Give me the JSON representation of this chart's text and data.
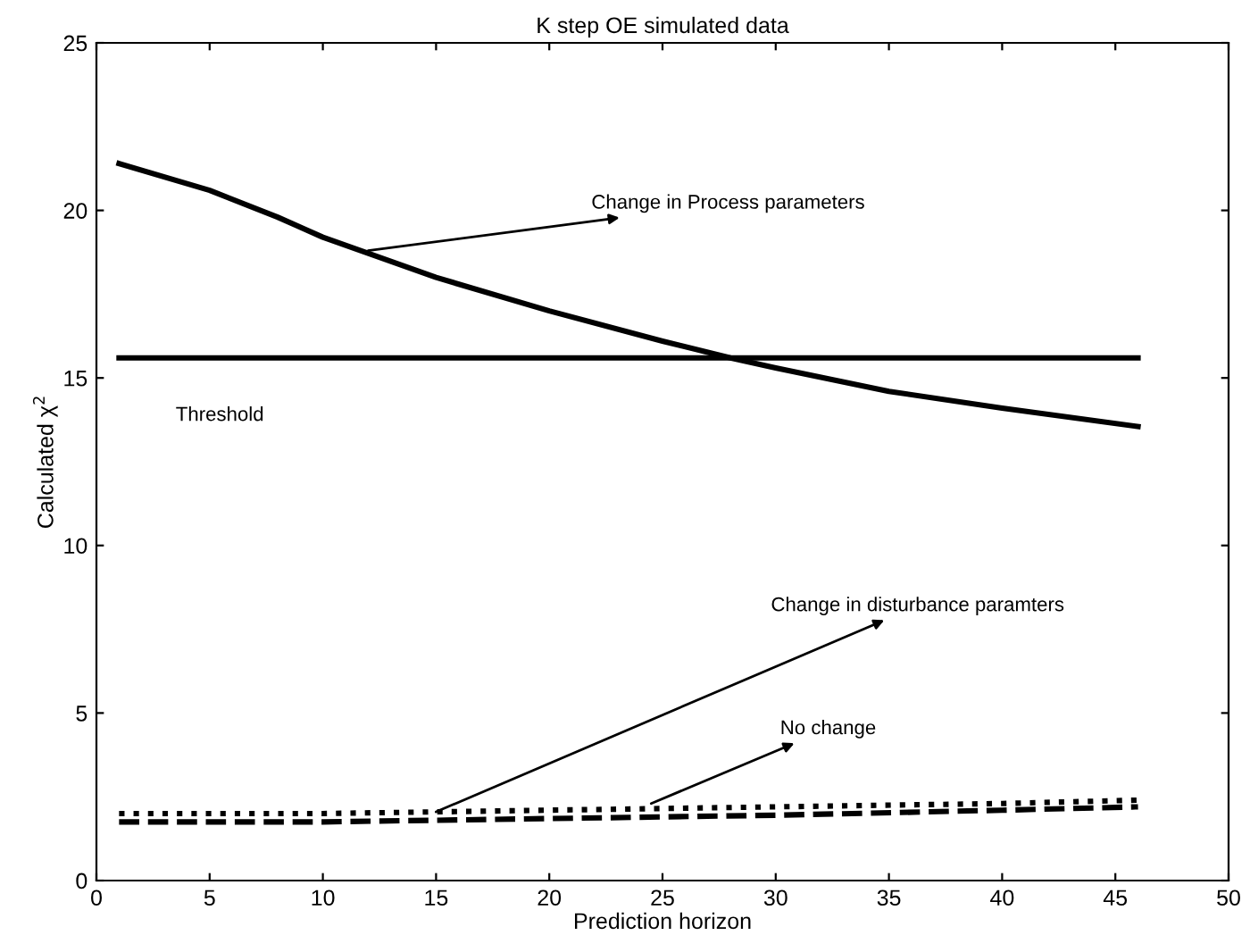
{
  "chart_data": {
    "type": "line",
    "title": "K step OE simulated data",
    "xlabel": "Prediction horizon",
    "ylabel": "Calculated χ$^{2}$",
    "xlim": [
      0,
      50
    ],
    "xticks": [
      0,
      5,
      10,
      15,
      20,
      25,
      30,
      35,
      40,
      45,
      50
    ],
    "ylim": [
      0,
      25
    ],
    "yticks": [
      0,
      5,
      10,
      15,
      20,
      25
    ],
    "grid": false,
    "series": [
      {
        "color": "#000000",
        "line_style": "solid",
        "x": [
          1,
          5,
          8,
          10,
          15,
          20,
          25,
          28,
          30,
          35,
          40,
          46
        ],
        "values": [
          21.4,
          20.6,
          19.8,
          19.2,
          18.0,
          17.0,
          16.1,
          15.6,
          15.3,
          14.6,
          14.1,
          13.55
        ]
      },
      {
        "color": "#000000",
        "line_style": "solid",
        "x": [
          1,
          46
        ],
        "values": [
          15.6,
          15.6
        ]
      },
      {
        "color": "#000000",
        "line_style": "dotted",
        "x": [
          1,
          10,
          20,
          30,
          40,
          46
        ],
        "values": [
          2.0,
          2.0,
          2.1,
          2.2,
          2.3,
          2.4
        ]
      },
      {
        "color": "#000000",
        "line_style": "dashed",
        "x": [
          1,
          10,
          20,
          30,
          40,
          46
        ],
        "values": [
          1.75,
          1.75,
          1.85,
          1.95,
          2.1,
          2.2
        ]
      }
    ],
    "annotations": [
      {
        "text": "Change in Process parameters",
        "x": 12,
        "y": 18.8
      },
      "Threshold",
      {
        "text": "Change in disturbance paramters",
        "x": 15,
        "y": 2.05
      },
      {
        "text": "No change",
        "x": 24.5,
        "y": 2.3
      }
    ]
  }
}
